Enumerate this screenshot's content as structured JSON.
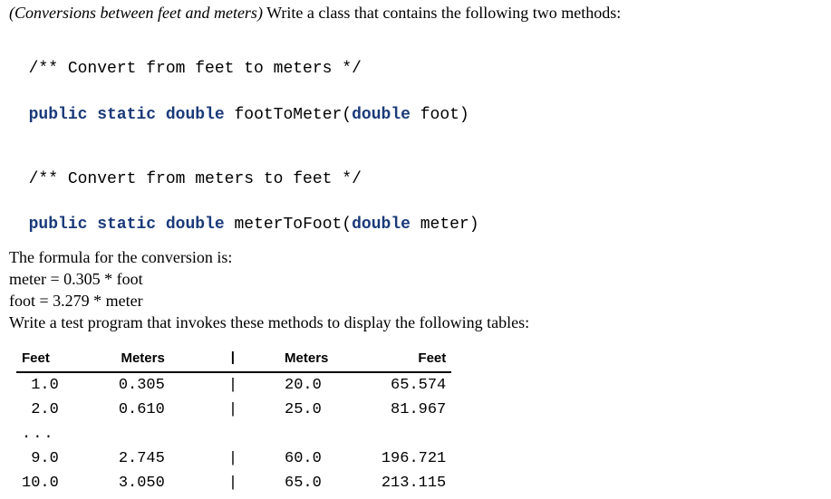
{
  "intro": {
    "title_italic": "(Conversions between feet and meters)",
    "title_rest": " Write a class that contains the following two methods:"
  },
  "code1": {
    "comment": "/** Convert from feet to meters */",
    "kw_pub": "public",
    "kw_static": "static",
    "kw_double_ret": "double",
    "method": " footToMeter",
    "paren_open": "(",
    "kw_double_param": "double",
    "param": " foot)"
  },
  "code2": {
    "comment": "/** Convert from meters to feet */",
    "kw_pub": "public",
    "kw_static": "static",
    "kw_double_ret": "double",
    "method": " meterToFoot",
    "paren_open": "(",
    "kw_double_param": "double",
    "param": " meter)"
  },
  "formula": {
    "heading": "The formula for the conversion is:",
    "line1": "meter = 0.305 * foot",
    "line2": "foot = 3.279 * meter",
    "instruction": "Write a test program that invokes these methods to display the following tables:"
  },
  "table": {
    "headers": {
      "feet": "Feet",
      "meters_left": "Meters",
      "sep": "|",
      "meters_right": "Meters",
      "feet_right": "Feet"
    },
    "rows": [
      {
        "feet": "1.0",
        "meters_l": "0.305",
        "sep": "|",
        "meters_r": "20.0",
        "feet_r": "65.574"
      },
      {
        "feet": "2.0",
        "meters_l": "0.610",
        "sep": "|",
        "meters_r": "25.0",
        "feet_r": "81.967"
      },
      {
        "feet": "...",
        "meters_l": "",
        "sep": "",
        "meters_r": "",
        "feet_r": ""
      },
      {
        "feet": "9.0",
        "meters_l": "2.745",
        "sep": "|",
        "meters_r": "60.0",
        "feet_r": "196.721"
      },
      {
        "feet": "10.0",
        "meters_l": "3.050",
        "sep": "|",
        "meters_r": "65.0",
        "feet_r": "213.115"
      }
    ]
  }
}
